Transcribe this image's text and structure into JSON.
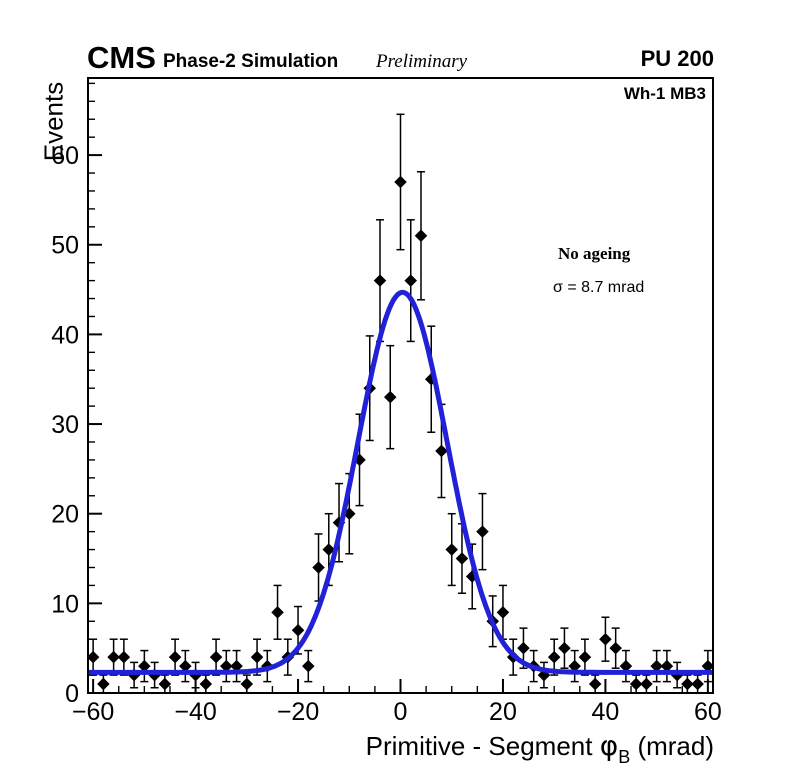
{
  "header": {
    "experiment": "CMS",
    "label": "Phase-2 Simulation",
    "sublabel": "Preliminary",
    "pileup": "PU 200"
  },
  "plot": {
    "region_label": "Wh-1 MB3",
    "legend": {
      "title": "No ageing",
      "sigma_text": "σ = 8.7 mrad"
    }
  },
  "axes": {
    "x": {
      "title_main": "Primitive - Segment ",
      "title_symbol": "φ",
      "title_subscript": "B",
      "title_unit": " (mrad)",
      "tick_labels": [
        "−60",
        "−40",
        "−20",
        "0",
        "20",
        "40",
        "60"
      ],
      "tick_values": [
        -60,
        -40,
        -20,
        0,
        20,
        40,
        60
      ],
      "minor_tick_step": 5,
      "range": [
        -61,
        61
      ]
    },
    "y": {
      "title": "Events",
      "tick_labels": [
        "0",
        "10",
        "20",
        "30",
        "40",
        "50",
        "60"
      ],
      "tick_values": [
        0,
        10,
        20,
        30,
        40,
        50,
        60
      ],
      "minor_tick_step": 2,
      "range": [
        0,
        68.6
      ]
    }
  },
  "chart_data": {
    "type": "scatter",
    "description": "Histogram of Primitive - Segment phi_B residuals (mrad) with Poisson error bars and a Gaussian fit curve",
    "title": "",
    "xlabel": "Primitive - Segment phi_B (mrad)",
    "ylabel": "Events",
    "bin_width": 2,
    "x": [
      -60,
      -58,
      -56,
      -54,
      -52,
      -50,
      -48,
      -46,
      -44,
      -42,
      -40,
      -38,
      -36,
      -34,
      -32,
      -30,
      -28,
      -26,
      -24,
      -22,
      -20,
      -18,
      -16,
      -14,
      -12,
      -10,
      -8,
      -6,
      -4,
      -2,
      0,
      2,
      4,
      6,
      8,
      10,
      12,
      14,
      16,
      18,
      20,
      22,
      24,
      26,
      28,
      30,
      32,
      34,
      36,
      38,
      40,
      42,
      44,
      46,
      48,
      50,
      52,
      54,
      56,
      58,
      60
    ],
    "values": [
      4,
      1,
      4,
      4,
      2,
      3,
      2,
      1,
      4,
      3,
      2,
      1,
      4,
      3,
      3,
      1,
      4,
      3,
      9,
      4,
      7,
      3,
      14,
      16,
      19,
      20,
      26,
      34,
      46,
      33,
      57,
      46,
      51,
      35,
      27,
      16,
      15,
      13,
      18,
      8,
      9,
      4,
      5,
      3,
      2,
      4,
      5,
      3,
      4,
      1,
      6,
      5,
      3,
      1,
      1,
      3,
      3,
      2,
      1,
      1,
      3
    ],
    "error_model": "sqrt(N)",
    "fit": {
      "shape": "gaussian_plus_constant",
      "mean": 0.4,
      "sigma": 8.7,
      "amplitude": 42.4,
      "baseline": 2.3,
      "sigma_label": "σ = 8.7 mrad"
    },
    "colors": {
      "fit_line": "#2121d8",
      "marker": "#000000",
      "frame": "#000000"
    },
    "legend_position": "right-middle",
    "grid": false
  }
}
